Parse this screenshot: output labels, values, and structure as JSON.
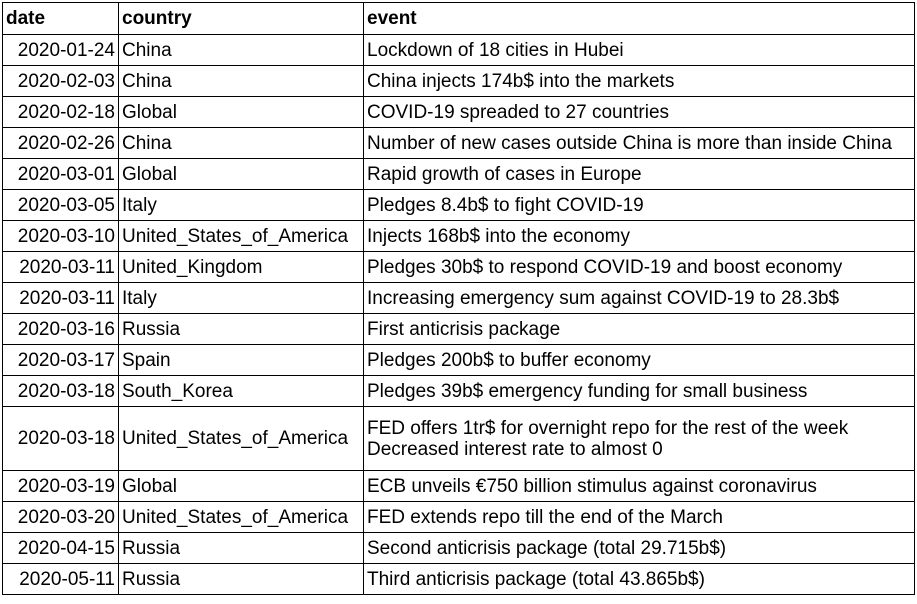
{
  "headers": {
    "date": "date",
    "country": "country",
    "event": "event"
  },
  "rows": [
    {
      "date": "2020-01-24",
      "country": "China",
      "event": [
        "Lockdown of 18 cities in Hubei"
      ]
    },
    {
      "date": "2020-02-03",
      "country": "China",
      "event": [
        "China injects 174b$ into the markets"
      ]
    },
    {
      "date": "2020-02-18",
      "country": "Global",
      "event": [
        "COVID-19 spreaded to 27 countries"
      ]
    },
    {
      "date": "2020-02-26",
      "country": "China",
      "event": [
        "Number of new cases outside China is more than inside China"
      ]
    },
    {
      "date": "2020-03-01",
      "country": "Global",
      "event": [
        "Rapid growth of cases in Europe"
      ]
    },
    {
      "date": "2020-03-05",
      "country": "Italy",
      "event": [
        "Pledges 8.4b$ to fight COVID-19"
      ]
    },
    {
      "date": "2020-03-10",
      "country": "United_States_of_America",
      "event": [
        "Injects 168b$ into the economy"
      ]
    },
    {
      "date": "2020-03-11",
      "country": "United_Kingdom",
      "event": [
        "Pledges 30b$ to respond COVID-19 and boost economy"
      ]
    },
    {
      "date": "2020-03-11",
      "country": "Italy",
      "event": [
        "Increasing emergency sum against COVID-19 to 28.3b$"
      ]
    },
    {
      "date": "2020-03-16",
      "country": "Russia",
      "event": [
        "First anticrisis package"
      ]
    },
    {
      "date": "2020-03-17",
      "country": "Spain",
      "event": [
        "Pledges 200b$ to buffer economy"
      ]
    },
    {
      "date": "2020-03-18",
      "country": "South_Korea",
      "event": [
        "Pledges 39b$ emergency funding for small business"
      ]
    },
    {
      "date": "2020-03-18",
      "country": "United_States_of_America",
      "event": [
        "FED offers 1tr$ for overnight repo for the rest of the week",
        "Decreased interest rate to almost 0"
      ]
    },
    {
      "date": "2020-03-19",
      "country": "Global",
      "event": [
        "ECB unveils €750 billion stimulus against coronavirus"
      ]
    },
    {
      "date": "2020-03-20",
      "country": "United_States_of_America",
      "event": [
        "FED extends repo till the end of the March"
      ]
    },
    {
      "date": "2020-04-15",
      "country": "Russia",
      "event": [
        "Second anticrisis package (total 29.715b$)"
      ]
    },
    {
      "date": "2020-05-11",
      "country": "Russia",
      "event": [
        "Third anticrisis package (total 43.865b$)"
      ]
    }
  ]
}
